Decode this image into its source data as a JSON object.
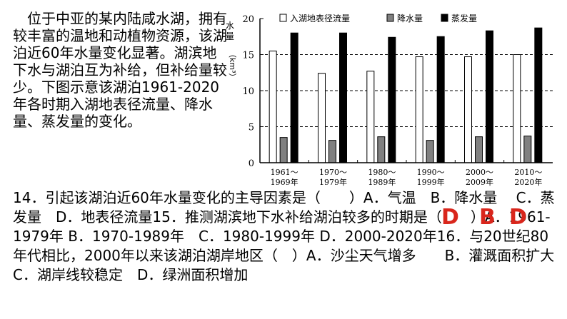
{
  "intro": "位于中亚的某内陆咸水湖，拥有较丰富的温地和动植物资源，该湖泊近60年水量变化显著。湖滨地下水与湖泊互为补给，但补给量较少。下图示意该湖泊1961-2020年各时期入湖地表径流量、降水量、蒸发量的变化。",
  "questions": "14．引起该湖泊近60年水量变化的主导因素是（　　）A．气温　B．降水量　 C．蒸发量　D．地表径流量15．推测湖滨地下水补给湖泊较多的时期是（　　）A．1961-1979年 B．1970-1989年　C．1980-1999年 D．2000-2020年16．与20世纪80年代相比，2000年以来该湖泊湖岸地区（　）A．沙尘天气增多　　B．灌溉面积扩大 C．湖岸线较稳定　D．绿洲面积增加",
  "answers": [
    "D",
    "B",
    "D"
  ],
  "colors": {
    "answer": "#d9261c",
    "runoff": "#ffffff",
    "precip": "#808080",
    "evap": "#000000"
  },
  "chart_data": {
    "type": "bar",
    "ylabel": "水量（km³）",
    "ylim": [
      0,
      20
    ],
    "yticks": [
      0,
      5,
      10,
      15,
      20
    ],
    "grid": "dashed at 5, 10, 15",
    "legend_position": "top",
    "categories": [
      "1961～1969年",
      "1970～1979年",
      "1980～1989年",
      "1990～1999年",
      "2000～2009年",
      "2010～2020年"
    ],
    "series": [
      {
        "name": "入湖地表径流量",
        "color": "#ffffff",
        "values": [
          15.5,
          12.4,
          12.7,
          14.7,
          14.7,
          15.0
        ]
      },
      {
        "name": "降水量",
        "color": "#808080",
        "values": [
          3.5,
          3.1,
          3.6,
          3.1,
          3.6,
          3.7
        ]
      },
      {
        "name": "蒸发量",
        "color": "#000000",
        "values": [
          18.0,
          18.0,
          17.4,
          17.5,
          18.3,
          18.7
        ]
      }
    ]
  }
}
